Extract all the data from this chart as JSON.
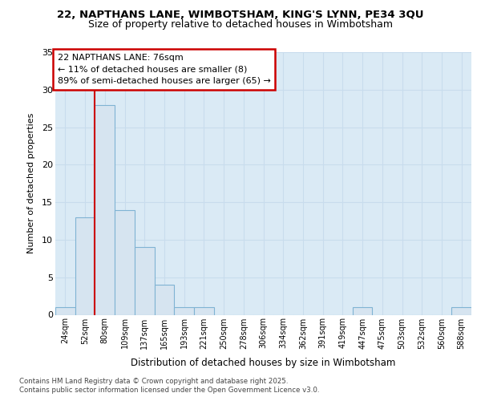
{
  "title1": "22, NAPTHANS LANE, WIMBOTSHAM, KING'S LYNN, PE34 3QU",
  "title2": "Size of property relative to detached houses in Wimbotsham",
  "xlabel": "Distribution of detached houses by size in Wimbotsham",
  "ylabel": "Number of detached properties",
  "categories": [
    "24sqm",
    "52sqm",
    "80sqm",
    "109sqm",
    "137sqm",
    "165sqm",
    "193sqm",
    "221sqm",
    "250sqm",
    "278sqm",
    "306sqm",
    "334sqm",
    "362sqm",
    "391sqm",
    "419sqm",
    "447sqm",
    "475sqm",
    "503sqm",
    "532sqm",
    "560sqm",
    "588sqm"
  ],
  "values": [
    1,
    13,
    28,
    14,
    9,
    4,
    1,
    1,
    0,
    0,
    0,
    0,
    0,
    0,
    0,
    1,
    0,
    0,
    0,
    0,
    1
  ],
  "bar_color": "#d6e4f0",
  "bar_edge_color": "#7fb3d3",
  "vline_x": 1.5,
  "vline_color": "#cc0000",
  "annotation_text": "22 NAPTHANS LANE: 76sqm\n← 11% of detached houses are smaller (8)\n89% of semi-detached houses are larger (65) →",
  "annotation_box_color": "#cc0000",
  "fig_bg_color": "#ffffff",
  "plot_bg_color": "#daeaf5",
  "grid_color": "#c8dced",
  "ylim": [
    0,
    35
  ],
  "yticks": [
    0,
    5,
    10,
    15,
    20,
    25,
    30,
    35
  ],
  "footer1": "Contains HM Land Registry data © Crown copyright and database right 2025.",
  "footer2": "Contains public sector information licensed under the Open Government Licence v3.0."
}
